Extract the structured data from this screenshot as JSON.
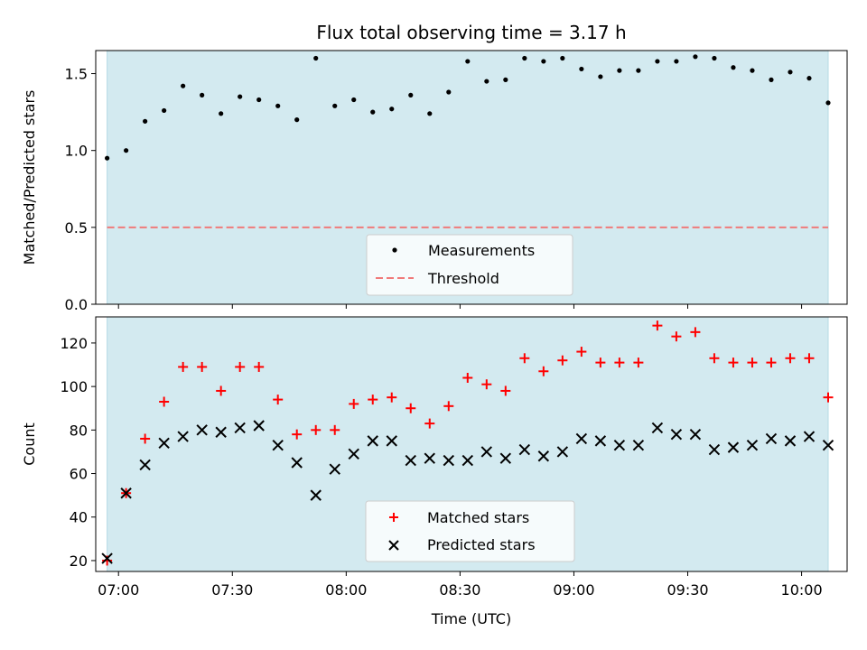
{
  "chart_data": {
    "title": "Flux total observing time = 3.17 h",
    "xlabel": "Time (UTC)",
    "x_ticks": [
      "07:00",
      "07:30",
      "08:00",
      "08:30",
      "09:00",
      "09:30",
      "10:00"
    ],
    "x_range": [
      "06:54",
      "10:12"
    ],
    "shaded_span": [
      "06:57",
      "10:07"
    ],
    "colors": {
      "span": "#d3eaf0",
      "measurements": "#000000",
      "threshold": "#f07a7a",
      "matched": "#ff0000",
      "predicted": "#000000"
    },
    "panels": [
      {
        "type": "scatter",
        "ylabel": "Matched/Predicted stars",
        "ylim": [
          0,
          1.65
        ],
        "y_ticks": [
          "0.0",
          "0.5",
          "1.0",
          "1.5"
        ],
        "legend_position": "lower-center",
        "series": [
          {
            "name": "Measurements",
            "marker": "dot",
            "x": [
              "06:57",
              "07:02",
              "07:07",
              "07:12",
              "07:17",
              "07:22",
              "07:27",
              "07:32",
              "07:37",
              "07:42",
              "07:47",
              "07:52",
              "07:57",
              "08:02",
              "08:07",
              "08:12",
              "08:17",
              "08:22",
              "08:27",
              "08:32",
              "08:37",
              "08:42",
              "08:47",
              "08:52",
              "08:57",
              "09:02",
              "09:07",
              "09:12",
              "09:17",
              "09:22",
              "09:27",
              "09:32",
              "09:37",
              "09:42",
              "09:47",
              "09:52",
              "09:57",
              "10:02",
              "10:07"
            ],
            "y": [
              0.95,
              1.0,
              1.19,
              1.26,
              1.42,
              1.36,
              1.24,
              1.35,
              1.33,
              1.29,
              1.2,
              1.6,
              1.29,
              1.33,
              1.25,
              1.27,
              1.36,
              1.24,
              1.38,
              1.58,
              1.45,
              1.46,
              1.6,
              1.58,
              1.6,
              1.53,
              1.48,
              1.52,
              1.52,
              1.58,
              1.58,
              1.61,
              1.6,
              1.54,
              1.52,
              1.46,
              1.51,
              1.47,
              1.31
            ]
          }
        ],
        "threshold": {
          "name": "Threshold",
          "value": 0.5,
          "style": "dashed"
        }
      },
      {
        "type": "scatter",
        "ylabel": "Count",
        "ylim": [
          15,
          132
        ],
        "y_ticks": [
          "20",
          "40",
          "60",
          "80",
          "100",
          "120"
        ],
        "legend_position": "lower-center",
        "series": [
          {
            "name": "Matched stars",
            "marker": "plus",
            "x": [
              "06:57",
              "07:02",
              "07:07",
              "07:12",
              "07:17",
              "07:22",
              "07:27",
              "07:32",
              "07:37",
              "07:42",
              "07:47",
              "07:52",
              "07:57",
              "08:02",
              "08:07",
              "08:12",
              "08:17",
              "08:22",
              "08:27",
              "08:32",
              "08:37",
              "08:42",
              "08:47",
              "08:52",
              "08:57",
              "09:02",
              "09:07",
              "09:12",
              "09:17",
              "09:22",
              "09:27",
              "09:32",
              "09:37",
              "09:42",
              "09:47",
              "09:52",
              "09:57",
              "10:02",
              "10:07"
            ],
            "y": [
              20,
              51,
              76,
              93,
              109,
              109,
              98,
              109,
              109,
              94,
              78,
              80,
              80,
              92,
              94,
              95,
              90,
              83,
              91,
              104,
              101,
              98,
              113,
              107,
              112,
              116,
              111,
              111,
              111,
              128,
              123,
              125,
              113,
              111,
              111,
              111,
              113,
              113,
              95
            ]
          },
          {
            "name": "Predicted stars",
            "marker": "x",
            "x": [
              "06:57",
              "07:02",
              "07:07",
              "07:12",
              "07:17",
              "07:22",
              "07:27",
              "07:32",
              "07:37",
              "07:42",
              "07:47",
              "07:52",
              "07:57",
              "08:02",
              "08:07",
              "08:12",
              "08:17",
              "08:22",
              "08:27",
              "08:32",
              "08:37",
              "08:42",
              "08:47",
              "08:52",
              "08:57",
              "09:02",
              "09:07",
              "09:12",
              "09:17",
              "09:22",
              "09:27",
              "09:32",
              "09:37",
              "09:42",
              "09:47",
              "09:52",
              "09:57",
              "10:02",
              "10:07"
            ],
            "y": [
              21,
              51,
              64,
              74,
              77,
              80,
              79,
              81,
              82,
              73,
              65,
              50,
              62,
              69,
              75,
              75,
              66,
              67,
              66,
              66,
              70,
              67,
              71,
              68,
              70,
              76,
              75,
              73,
              73,
              81,
              78,
              78,
              71,
              72,
              73,
              76,
              75,
              77,
              73
            ]
          }
        ]
      }
    ]
  }
}
